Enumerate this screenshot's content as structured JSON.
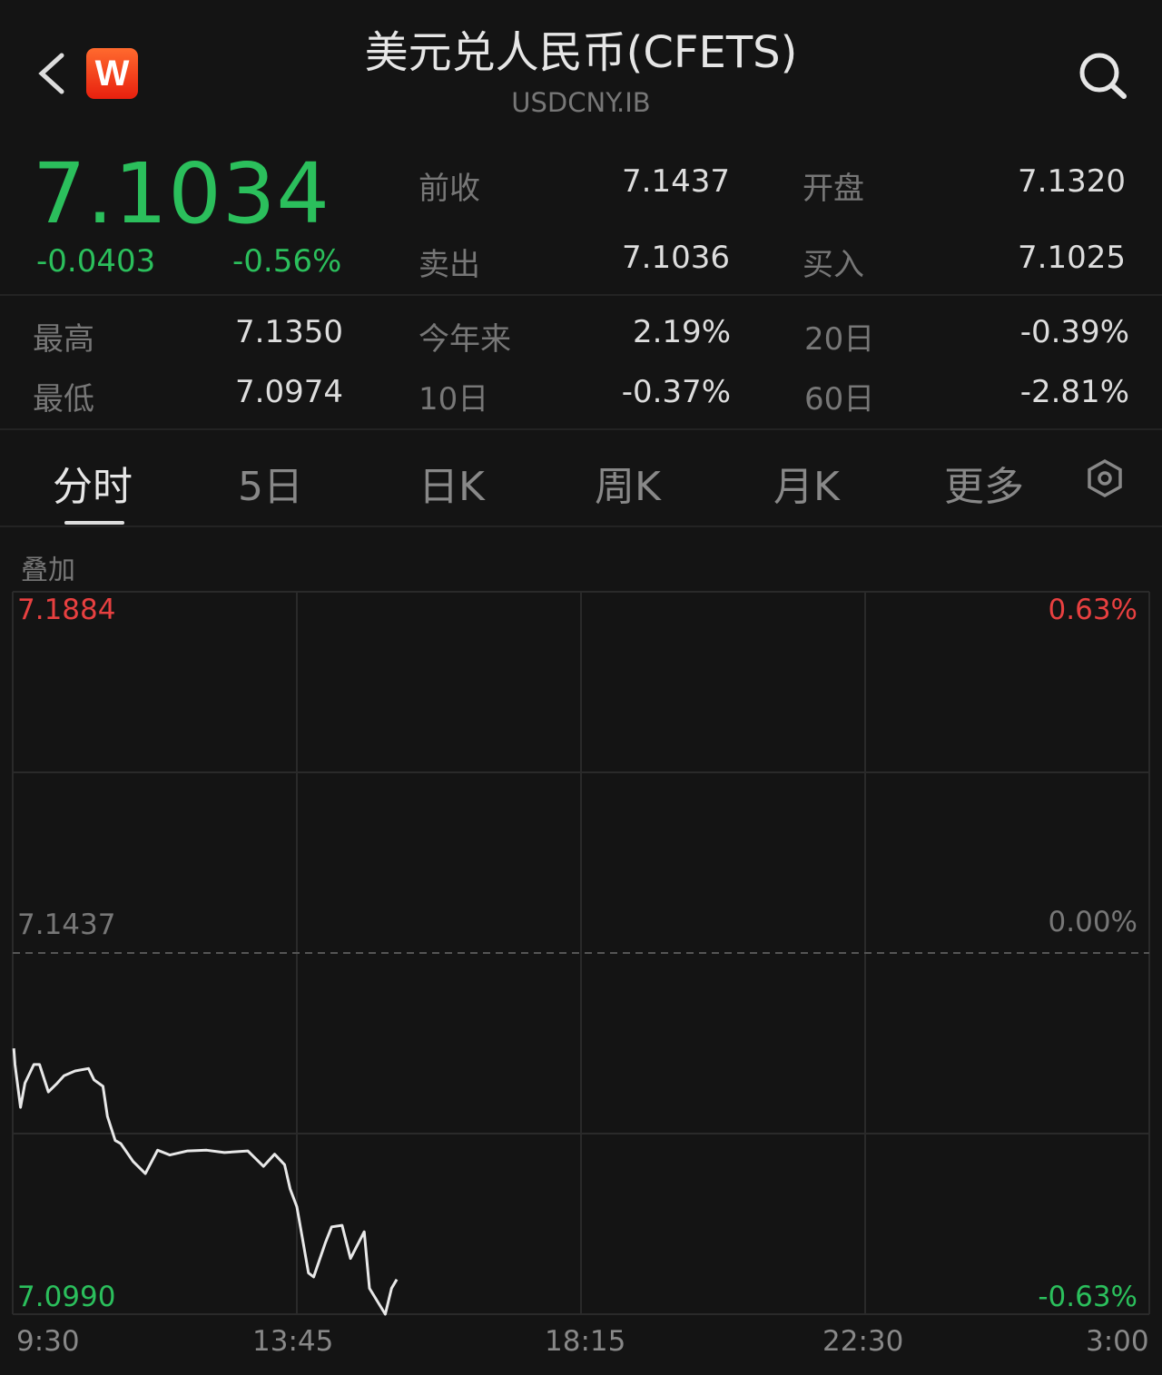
{
  "header": {
    "title": "美元兑人民币(CFETS)",
    "subtitle": "USDCNY.IB",
    "logo_text": "W",
    "icons": [
      "back-chevron-icon",
      "search-icon"
    ]
  },
  "quote": {
    "price": "7.1034",
    "change": "-0.0403",
    "change_pct": "-0.56%",
    "stats": [
      {
        "label": "前收",
        "value": "7.1437"
      },
      {
        "label": "开盘",
        "value": "7.1320"
      },
      {
        "label": "卖出",
        "value": "7.1036"
      },
      {
        "label": "买入",
        "value": "7.1025"
      }
    ],
    "ranges": [
      {
        "label": "最高",
        "value": "7.1350"
      },
      {
        "label": "今年来",
        "value": "2.19%"
      },
      {
        "label": "20日",
        "value": "-0.39%"
      },
      {
        "label": "最低",
        "value": "7.0974"
      },
      {
        "label": "10日",
        "value": "-0.37%"
      },
      {
        "label": "60日",
        "value": "-2.81%"
      }
    ]
  },
  "tabs": [
    {
      "label": "分时",
      "active": true
    },
    {
      "label": "5日"
    },
    {
      "label": "日K"
    },
    {
      "label": "周K"
    },
    {
      "label": "月K"
    },
    {
      "label": "更多"
    }
  ],
  "overlay_label": "叠加",
  "colors": {
    "up": "#e84040",
    "down": "#2bbf5c",
    "background": "#141414"
  },
  "chart_data": {
    "type": "line",
    "ylim": [
      7.099,
      7.1884
    ],
    "reference": 7.1437,
    "y_labels_left": [
      "7.1884",
      "7.1437",
      "7.0990"
    ],
    "y_labels_right": [
      "0.63%",
      "0.00%",
      "-0.63%"
    ],
    "x_ticks": [
      "9:30",
      "13:45",
      "18:15",
      "22:30",
      "3:00"
    ],
    "grid": true,
    "series": [
      {
        "points": [
          [
            "9:31",
            7.1319
          ],
          [
            "9:32",
            7.1299
          ],
          [
            "9:37",
            7.1246
          ],
          [
            "9:41",
            7.1276
          ],
          [
            "9:49",
            7.1299
          ],
          [
            "9:54",
            7.1299
          ],
          [
            "10:02",
            7.1265
          ],
          [
            "10:10",
            7.1276
          ],
          [
            "10:16",
            7.1285
          ],
          [
            "10:26",
            7.1291
          ],
          [
            "10:38",
            7.1294
          ],
          [
            "10:43",
            7.128
          ],
          [
            "10:51",
            7.1272
          ],
          [
            "10:55",
            7.1235
          ],
          [
            "11:02",
            7.1205
          ],
          [
            "11:07",
            7.1201
          ],
          [
            "11:18",
            7.1179
          ],
          [
            "11:29",
            7.1164
          ],
          [
            "11:40",
            7.1193
          ],
          [
            "11:51",
            7.1187
          ],
          [
            "12:07",
            7.1192
          ],
          [
            "12:24",
            7.1193
          ],
          [
            "12:40",
            7.119
          ],
          [
            "13:01",
            7.1192
          ],
          [
            "13:15",
            7.1173
          ],
          [
            "13:25",
            7.1188
          ],
          [
            "13:34",
            7.1175
          ],
          [
            "13:39",
            7.1145
          ],
          [
            "13:45",
            7.1123
          ],
          [
            "13:50",
            7.1086
          ],
          [
            "13:56",
            7.1041
          ],
          [
            "14:01",
            7.1036
          ],
          [
            "14:12",
            7.1078
          ],
          [
            "14:18",
            7.1098
          ],
          [
            "14:28",
            7.11
          ],
          [
            "14:36",
            7.1059
          ],
          [
            "14:49",
            7.1092
          ],
          [
            "14:54",
            7.1022
          ],
          [
            "15:09",
            7.099
          ],
          [
            "15:15",
            7.1022
          ],
          [
            "15:20",
            7.1033
          ]
        ]
      }
    ]
  }
}
